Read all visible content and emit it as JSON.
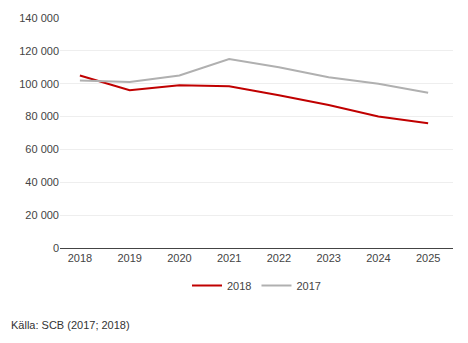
{
  "chart_data": {
    "type": "line",
    "x": [
      2018,
      2019,
      2020,
      2021,
      2022,
      2023,
      2024,
      2025
    ],
    "series": [
      {
        "name": "2018",
        "color": "#c00000",
        "values": [
          105000,
          96000,
          99000,
          98500,
          93000,
          87000,
          80000,
          76000
        ]
      },
      {
        "name": "2017",
        "color": "#b0b0b0",
        "values": [
          102000,
          101000,
          105000,
          115000,
          110000,
          104000,
          100000,
          94500
        ]
      }
    ],
    "xlim": [
      2017.6,
      2025.5
    ],
    "xticks": [
      2018,
      2019,
      2020,
      2021,
      2022,
      2023,
      2024,
      2025
    ],
    "ylim": [
      0,
      140000
    ],
    "yticks": [
      0,
      {
        "value": 20000,
        "label": "20 000"
      },
      {
        "value": 40000,
        "label": "40 000"
      },
      {
        "value": 60000,
        "label": "60 000"
      },
      {
        "value": 80000,
        "label": "80 000"
      },
      {
        "value": 100000,
        "label": "100 000"
      },
      {
        "value": 120000,
        "label": "120 000"
      },
      {
        "value": 140000,
        "label": "140 000"
      }
    ],
    "grid": "y",
    "legend": "bottom",
    "annotations": [
      "Källa: SCB (2017; 2018)"
    ]
  }
}
